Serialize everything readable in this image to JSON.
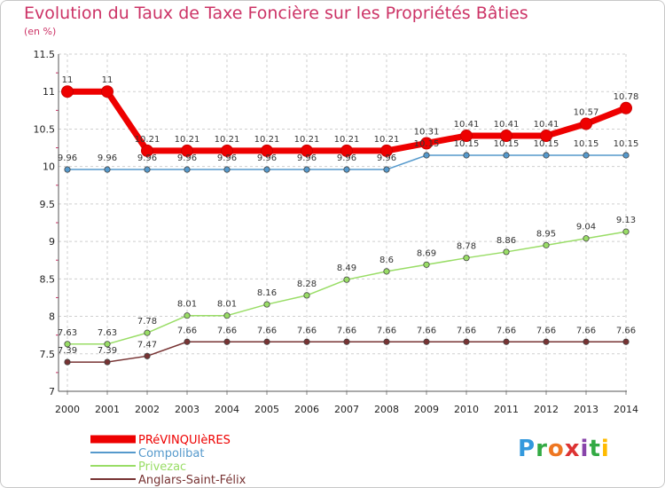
{
  "chart_data": {
    "type": "line",
    "title": "Evolution du Taux de Taxe Foncière sur les Propriétés Bâties",
    "ylabel": "(en %)",
    "ylim": [
      7,
      11.5
    ],
    "yticks": [
      "7",
      "7.5",
      "8",
      "8.5",
      "9",
      "9.5",
      "10",
      "10.5",
      "11",
      "11.5"
    ],
    "x": [
      "2000",
      "2001",
      "2002",
      "2003",
      "2004",
      "2005",
      "2006",
      "2007",
      "2008",
      "2009",
      "2010",
      "2011",
      "2012",
      "2013",
      "2014"
    ],
    "series": [
      {
        "name": "PRéVINQUIèRES",
        "color": "#ee0000",
        "values": [
          11,
          11,
          10.21,
          10.21,
          10.21,
          10.21,
          10.21,
          10.21,
          10.21,
          10.31,
          10.41,
          10.41,
          10.41,
          10.57,
          10.78
        ],
        "labels": [
          "11",
          "11",
          "10.21",
          "10.21",
          "10.21",
          "10.21",
          "10.21",
          "10.21",
          "10.21",
          "10.31",
          "10.41",
          "10.41",
          "10.41",
          "10.57",
          "10.78"
        ]
      },
      {
        "name": "Compolibat",
        "color": "#5599cc",
        "values": [
          9.96,
          9.96,
          9.96,
          9.96,
          9.96,
          9.96,
          9.96,
          9.96,
          9.96,
          10.15,
          10.15,
          10.15,
          10.15,
          10.15,
          10.15
        ],
        "labels": [
          "9.96",
          "9.96",
          "9.96",
          "9.96",
          "9.96",
          "9.96",
          "9.96",
          "9.96",
          "9.96",
          "10.15",
          "10.15",
          "10.15",
          "10.15",
          "10.15",
          "10.15"
        ]
      },
      {
        "name": "Privezac",
        "color": "#99dd66",
        "values": [
          7.63,
          7.63,
          7.78,
          8.01,
          8.01,
          8.16,
          8.28,
          8.49,
          8.6,
          8.69,
          8.78,
          8.86,
          8.95,
          9.04,
          9.13
        ],
        "labels": [
          "7.63",
          "7.63",
          "7.78",
          "8.01",
          "8.01",
          "8.16",
          "8.28",
          "8.49",
          "8.6",
          "8.69",
          "8.78",
          "8.86",
          "8.95",
          "9.04",
          "9.13"
        ]
      },
      {
        "name": "Anglars-Saint-Félix",
        "color": "#773333",
        "values": [
          7.39,
          7.39,
          7.47,
          7.66,
          7.66,
          7.66,
          7.66,
          7.66,
          7.66,
          7.66,
          7.66,
          7.66,
          7.66,
          7.66,
          7.66
        ],
        "labels": [
          "7.39",
          "7.39",
          "7.47",
          "7.66",
          "7.66",
          "7.66",
          "7.66",
          "7.66",
          "7.66",
          "7.66",
          "7.66",
          "7.66",
          "7.66",
          "7.66",
          "7.66"
        ]
      }
    ]
  },
  "logo": {
    "text": "Proxiti"
  }
}
